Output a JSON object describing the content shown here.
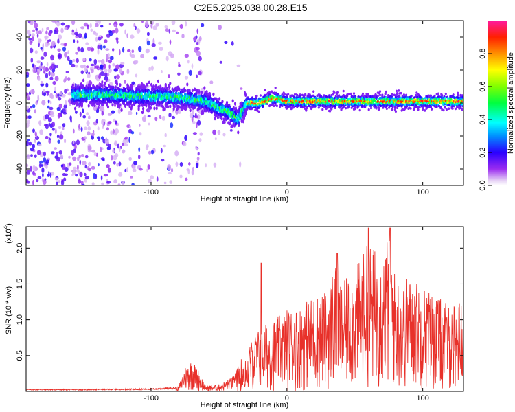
{
  "title": "C2E5.2025.038.00.28.E15",
  "chart_data": [
    {
      "type": "heatmap",
      "xlabel": "Height of straight line (km)",
      "ylabel": "Frequency (Hz)",
      "xlim": [
        -192,
        130
      ],
      "ylim": [
        -50,
        50
      ],
      "x_ticks": [
        -100,
        0,
        100
      ],
      "y_ticks": [
        -40,
        -20,
        0,
        20,
        40
      ],
      "colorbar": {
        "label": "Normalized spectral amplitude",
        "range": [
          0,
          1
        ],
        "ticks": [
          0.0,
          0.2,
          0.4,
          0.6,
          0.8
        ]
      },
      "ridge": {
        "description_points_x": [
          -155,
          -130,
          -110,
          -90,
          -75,
          -60,
          -50,
          -42,
          -36,
          -30,
          -20,
          -10,
          0,
          20,
          50,
          80,
          110,
          130
        ],
        "description_points_y": [
          5,
          5,
          4,
          4,
          3,
          1,
          -3,
          -6,
          -10,
          0,
          0,
          3,
          1,
          1,
          1,
          1,
          1,
          1
        ]
      }
    },
    {
      "type": "line",
      "xlabel": "Height of straight line (km)",
      "ylabel": "SNR (10 * v/v)",
      "y_multiplier": "(x10",
      "y_multiplier_exp": "4",
      "xlim": [
        -192,
        130
      ],
      "ylim": [
        0,
        2.3
      ],
      "x_ticks": [
        -100,
        0,
        100
      ],
      "y_ticks": [
        0.5,
        1.0,
        1.5,
        2.0
      ],
      "series": [
        {
          "color": "#e8312a",
          "envelope_x": [
            -192,
            -150,
            -100,
            -80,
            -75,
            -70,
            -65,
            -60,
            -50,
            -40,
            -30,
            -20,
            -10,
            0,
            10,
            20,
            30,
            35,
            40,
            50,
            60,
            70,
            75,
            80,
            90,
            100,
            110,
            120,
            130
          ],
          "envelope_y": [
            0.03,
            0.03,
            0.04,
            0.06,
            0.35,
            0.45,
            0.3,
            0.08,
            0.1,
            0.2,
            0.6,
            0.9,
            1.0,
            1.15,
            1.2,
            1.35,
            1.4,
            1.85,
            1.5,
            1.7,
            2.1,
            1.9,
            2.25,
            1.6,
            1.6,
            1.5,
            1.35,
            1.2,
            1.3
          ],
          "peaks_x": [
            -19,
            37,
            60,
            76
          ],
          "peaks_y": [
            1.79,
            1.93,
            2.28,
            2.28
          ]
        }
      ]
    }
  ]
}
